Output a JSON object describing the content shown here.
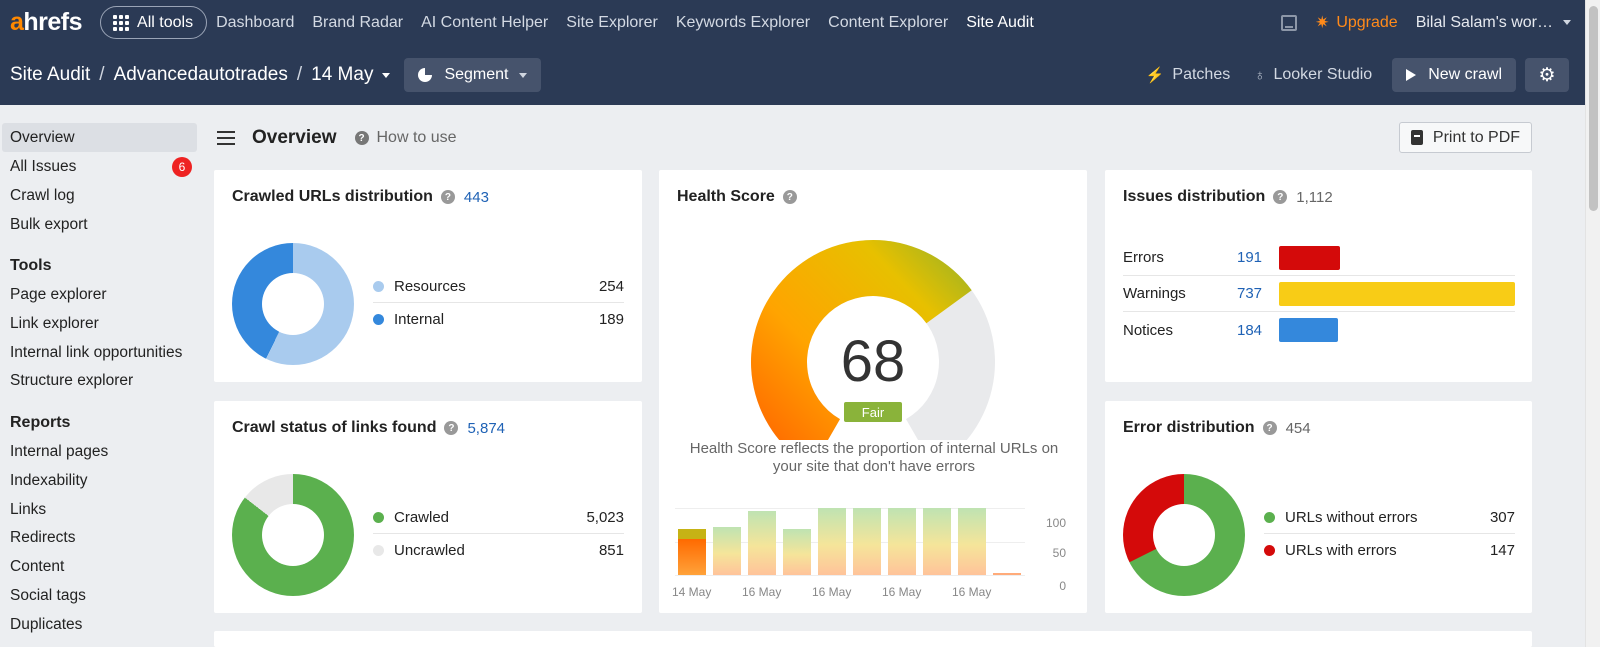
{
  "topnav": {
    "logo_a": "a",
    "logo_rest": "hrefs",
    "all_tools": "All tools",
    "links": [
      "Dashboard",
      "Brand Radar",
      "AI Content Helper",
      "Site Explorer",
      "Keywords Explorer",
      "Content Explorer",
      "Site Audit"
    ],
    "active_link": "Site Audit",
    "upgrade": "Upgrade",
    "account": "Bilal Salam's wor…"
  },
  "subnav": {
    "crumb_root": "Site Audit",
    "crumb_project": "Advancedautotrades",
    "crumb_date": "14 May",
    "segment": "Segment",
    "patches": "Patches",
    "looker": "Looker Studio",
    "new_crawl": "New crawl"
  },
  "sidebar": {
    "top_items": [
      {
        "label": "Overview",
        "active": true
      },
      {
        "label": "All Issues",
        "badge": "6"
      },
      {
        "label": "Crawl log"
      },
      {
        "label": "Bulk export"
      }
    ],
    "tools_heading": "Tools",
    "tools": [
      "Page explorer",
      "Link explorer",
      "Internal link opportunities",
      "Structure explorer"
    ],
    "reports_heading": "Reports",
    "reports": [
      "Internal pages",
      "Indexability",
      "Links",
      "Redirects",
      "Content",
      "Social tags",
      "Duplicates"
    ]
  },
  "overview": {
    "title": "Overview",
    "how_to_use": "How to use",
    "print_pdf": "Print to PDF"
  },
  "crawled_urls": {
    "title": "Crawled URLs distribution",
    "total": "443",
    "items": [
      {
        "label": "Resources",
        "value": "254",
        "color": "#a9cbee"
      },
      {
        "label": "Internal",
        "value": "189",
        "color": "#3488dc"
      }
    ]
  },
  "crawl_status": {
    "title": "Crawl status of links found",
    "total": "5,874",
    "items": [
      {
        "label": "Crawled",
        "value": "5,023",
        "color": "#5bb04e"
      },
      {
        "label": "Uncrawled",
        "value": "851",
        "color": "#e8e8e8"
      }
    ]
  },
  "health": {
    "title": "Health Score",
    "score": "68",
    "score_value": 68,
    "rating": "Fair",
    "description": "Health Score reflects the proportion of internal URLs on your site that don't have errors",
    "history_labels": [
      "14 May",
      "16 May",
      "16 May",
      "16 May",
      "16 May"
    ],
    "history_values": [
      68,
      72,
      95,
      68,
      100,
      100,
      100,
      100,
      100,
      2
    ],
    "y_ticks": [
      "100",
      "50",
      "0"
    ]
  },
  "issues": {
    "title": "Issues distribution",
    "total": "1,112",
    "rows": [
      {
        "label": "Errors",
        "value": "191",
        "color": "#d40a0a"
      },
      {
        "label": "Warnings",
        "value": "737",
        "color": "#f8cc16"
      },
      {
        "label": "Notices",
        "value": "184",
        "color": "#3488dc"
      }
    ]
  },
  "errors_dist": {
    "title": "Error distribution",
    "total": "454",
    "items": [
      {
        "label": "URLs without errors",
        "value": "307",
        "color": "#5bb04e"
      },
      {
        "label": "URLs with errors",
        "value": "147",
        "color": "#d40a0a"
      }
    ]
  }
}
